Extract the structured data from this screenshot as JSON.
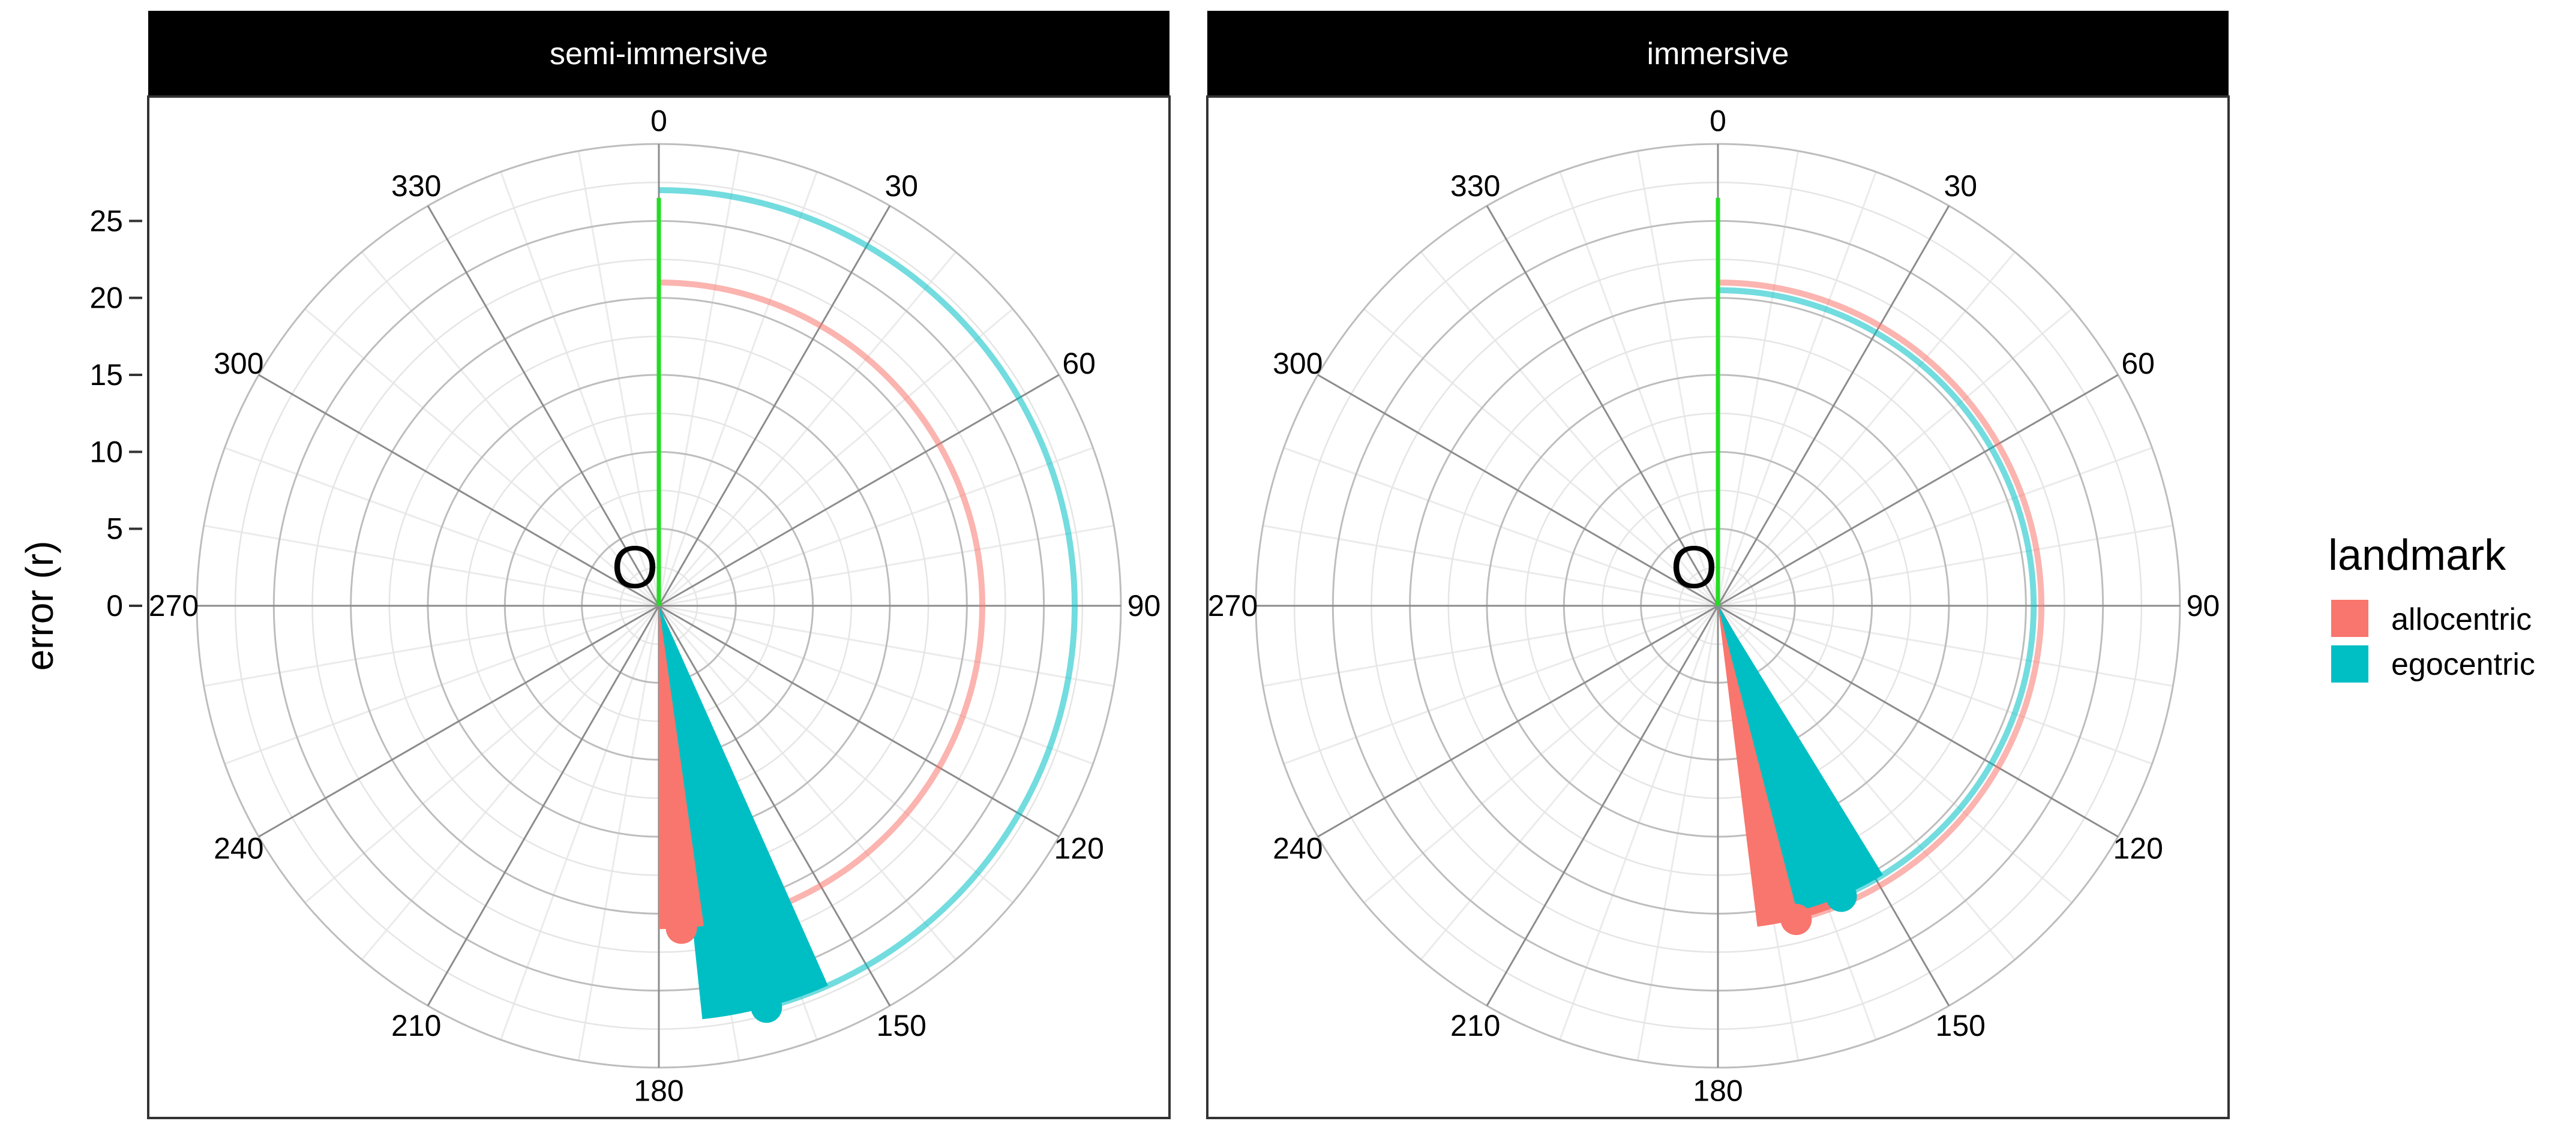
{
  "chart_data": {
    "type": "polar-rose",
    "ylabel": "error (r)",
    "rlim": [
      0,
      30
    ],
    "y_ticks": [
      0,
      5,
      10,
      15,
      20,
      25
    ],
    "angle_ticks": [
      0,
      30,
      60,
      90,
      120,
      150,
      180,
      210,
      240,
      270,
      300,
      330
    ],
    "grid": true,
    "origin_label": "O",
    "legend": {
      "title": "landmark",
      "position": "right",
      "entries": [
        {
          "label": "allocentric",
          "color": "#F8766D"
        },
        {
          "label": "egocentric",
          "color": "#00BFC4"
        }
      ]
    },
    "reference_line": {
      "angle": 0,
      "length": 26.5,
      "color": "#22DD22"
    },
    "panels": [
      {
        "title": "semi-immersive",
        "series": [
          {
            "name": "allocentric",
            "mean_angle": 176,
            "spread": 8,
            "length": 21,
            "arc_radius": 21,
            "color": "#F8766D"
          },
          {
            "name": "egocentric",
            "mean_angle": 165,
            "spread": 18,
            "length": 27,
            "arc_radius": 27,
            "color": "#00BFC4"
          }
        ]
      },
      {
        "title": "immersive",
        "series": [
          {
            "name": "allocentric",
            "mean_angle": 166,
            "spread": 14,
            "length": 21,
            "arc_radius": 21,
            "color": "#F8766D"
          },
          {
            "name": "egocentric",
            "mean_angle": 157,
            "spread": 17,
            "length": 20.5,
            "arc_radius": 20.5,
            "color": "#00BFC4"
          }
        ]
      }
    ]
  }
}
